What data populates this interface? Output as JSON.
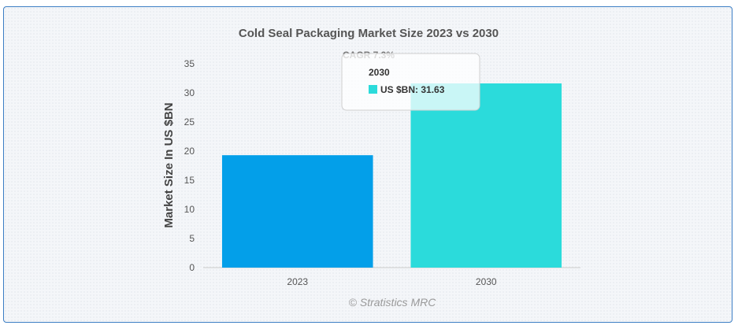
{
  "chart_data": {
    "type": "bar",
    "title": "Cold Seal Packaging Market Size 2023 vs 2030",
    "annotation": "CAGR 7.3%",
    "xlabel": "",
    "ylabel": "Market Size In US $BN",
    "categories": [
      "2023",
      "2030"
    ],
    "values": [
      19.3,
      31.63
    ],
    "ylim": [
      0,
      35
    ],
    "yticks": [
      0,
      5,
      10,
      15,
      20,
      25,
      30,
      35
    ],
    "bar_colors": [
      "#039fe9",
      "#2bdbdb"
    ],
    "grid": false,
    "tooltip": {
      "category": "2030",
      "series_label": "US $BN",
      "text": "US $BN: 31.63"
    }
  },
  "credit": "© Stratistics MRC"
}
